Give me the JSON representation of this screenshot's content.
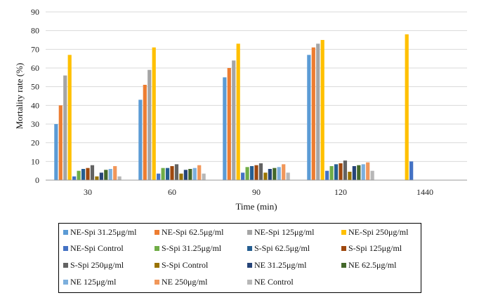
{
  "chart_data": {
    "type": "bar",
    "title": "",
    "xlabel": "Time (min)",
    "ylabel": "Mortality rate (%)",
    "ylim": [
      0,
      90
    ],
    "yticks": [
      0,
      10,
      20,
      30,
      40,
      50,
      60,
      70,
      80,
      90
    ],
    "grid": true,
    "legend_position": "bottom",
    "categories": [
      "30",
      "60",
      "90",
      "120",
      "1440"
    ],
    "series": [
      {
        "name": "NE-Spi 31.25μg/ml",
        "color": "#5B9BD5",
        "values": [
          30,
          43,
          55,
          67,
          0
        ]
      },
      {
        "name": "NE-Spi 62.5μg/ml",
        "color": "#ED7D31",
        "values": [
          40,
          51,
          60,
          71,
          0
        ]
      },
      {
        "name": "NE-Spi 125μg/ml",
        "color": "#A5A5A5",
        "values": [
          56,
          59,
          64,
          73,
          0
        ]
      },
      {
        "name": "NE-Spi 250μg/ml",
        "color": "#FFC000",
        "values": [
          67,
          71,
          73,
          75,
          78
        ]
      },
      {
        "name": "NE-Spi Control",
        "color": "#4472C4",
        "values": [
          2,
          3.5,
          4,
          5,
          10
        ]
      },
      {
        "name": "S-Spi 31.25μg/ml",
        "color": "#70AD47",
        "values": [
          5,
          6.5,
          7,
          7.5,
          0
        ]
      },
      {
        "name": "S-Spi 62.5μg/ml",
        "color": "#255E91",
        "values": [
          6,
          6.5,
          7.5,
          8.5,
          0
        ]
      },
      {
        "name": "S-Spi 125μg/ml",
        "color": "#9E480E",
        "values": [
          6.5,
          7.5,
          8,
          9,
          0
        ]
      },
      {
        "name": "S-Spi 250μg/ml",
        "color": "#636363",
        "values": [
          8,
          8.5,
          9,
          10.5,
          0
        ]
      },
      {
        "name": "S-Spi Control",
        "color": "#997300",
        "values": [
          2,
          3.5,
          4,
          4.5,
          0
        ]
      },
      {
        "name": "NE 31.25μg/ml",
        "color": "#264478",
        "values": [
          4,
          5.5,
          6,
          7.5,
          0
        ]
      },
      {
        "name": "NE 62.5μg/ml",
        "color": "#43682B",
        "values": [
          5.5,
          6,
          6.5,
          8,
          0
        ]
      },
      {
        "name": "NE 125μg/ml",
        "color": "#7CAFDD",
        "values": [
          6,
          6.5,
          7,
          8.5,
          0
        ]
      },
      {
        "name": "NE 250μg/ml",
        "color": "#F1975A",
        "values": [
          7.5,
          8,
          8.5,
          9.5,
          0
        ]
      },
      {
        "name": "NE Control",
        "color": "#B7B7B7",
        "values": [
          2,
          3.5,
          4,
          5,
          0
        ]
      }
    ]
  }
}
